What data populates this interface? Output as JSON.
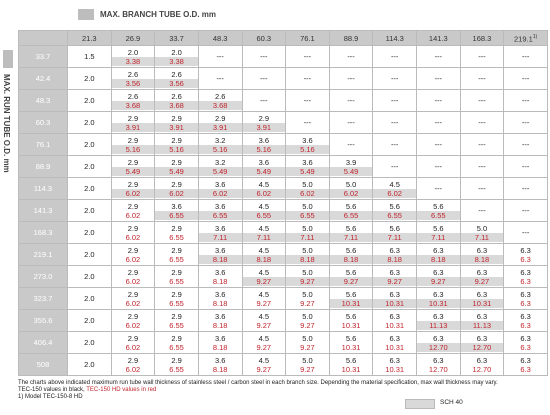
{
  "header": {
    "branch_label": "MAX. BRANCH TUBE O.D. mm",
    "run_label": "MAX. RUN TUBE O.D. mm"
  },
  "table": {
    "columns": [
      "21.3",
      "26.9",
      "33.7",
      "48.3",
      "60.3",
      "76.1",
      "88.9",
      "114.3",
      "141.3",
      "168.3",
      {
        "text": "219.1",
        "note": "1)"
      }
    ],
    "rows": [
      {
        "label": "33.7",
        "cells": [
          "1.5",
          {
            "a": "2.0",
            "b": "3.38",
            "s": true
          },
          {
            "a": "2.0",
            "b": "3.38",
            "s": true
          },
          "---",
          "---",
          "---",
          "---",
          "---",
          "---",
          "---",
          "---"
        ]
      },
      {
        "label": "42.4",
        "cells": [
          "2.0",
          {
            "a": "2.6",
            "b": "3.56",
            "s": true
          },
          {
            "a": "2.6",
            "b": "3.56",
            "s": true
          },
          "---",
          "---",
          "---",
          "---",
          "---",
          "---",
          "---",
          "---"
        ]
      },
      {
        "label": "48.3",
        "cells": [
          "2.0",
          {
            "a": "2.6",
            "b": "3.68",
            "s": true
          },
          {
            "a": "2.6",
            "b": "3.68",
            "s": true
          },
          {
            "a": "2.6",
            "b": "3.68",
            "s": true
          },
          "---",
          "---",
          "---",
          "---",
          "---",
          "---",
          "---"
        ]
      },
      {
        "label": "60.3",
        "cells": [
          "2.0",
          {
            "a": "2.9",
            "b": "3.91",
            "s": true
          },
          {
            "a": "2.9",
            "b": "3.91",
            "s": true
          },
          {
            "a": "2.9",
            "b": "3.91",
            "s": true
          },
          {
            "a": "2.9",
            "b": "3.91",
            "s": true
          },
          "---",
          "---",
          "---",
          "---",
          "---",
          "---"
        ]
      },
      {
        "label": "76.1",
        "cells": [
          "2.0",
          {
            "a": "2.9",
            "b": "5.16",
            "s": true
          },
          {
            "a": "2.9",
            "b": "5.16",
            "s": true
          },
          {
            "a": "3.2",
            "b": "5.16",
            "s": true
          },
          {
            "a": "3.6",
            "b": "5.16",
            "s": true
          },
          {
            "a": "3.6",
            "b": "5.16",
            "s": true
          },
          "---",
          "---",
          "---",
          "---",
          "---"
        ]
      },
      {
        "label": "88.9",
        "cells": [
          "2.0",
          {
            "a": "2.9",
            "b": "5.49",
            "s": true
          },
          {
            "a": "2.9",
            "b": "5.49",
            "s": true
          },
          {
            "a": "3.2",
            "b": "5.49",
            "s": true
          },
          {
            "a": "3.6",
            "b": "5.49",
            "s": true
          },
          {
            "a": "3.6",
            "b": "5.49",
            "s": true
          },
          {
            "a": "3.9",
            "b": "5.49",
            "s": true
          },
          "---",
          "---",
          "---",
          "---"
        ]
      },
      {
        "label": "114.3",
        "cells": [
          "2.0",
          {
            "a": "2.9",
            "b": "6.02",
            "s": true
          },
          {
            "a": "2.9",
            "b": "6.02",
            "s": true
          },
          {
            "a": "3.6",
            "b": "6.02",
            "s": true
          },
          {
            "a": "4.5",
            "b": "6.02",
            "s": true
          },
          {
            "a": "5.0",
            "b": "6.02",
            "s": true
          },
          {
            "a": "5.0",
            "b": "6.02",
            "s": true
          },
          {
            "a": "4.5",
            "b": "6.02",
            "s": true
          },
          "---",
          "---",
          "---"
        ]
      },
      {
        "label": "141.3",
        "cells": [
          "2.0",
          {
            "a": "2.9",
            "b": "6.02",
            "s": false
          },
          {
            "a": "3.6",
            "b": "6.55",
            "s": true
          },
          {
            "a": "3.6",
            "b": "6.55",
            "s": true
          },
          {
            "a": "4.5",
            "b": "6.55",
            "s": true
          },
          {
            "a": "5.0",
            "b": "6.55",
            "s": true
          },
          {
            "a": "5.6",
            "b": "6.55",
            "s": true
          },
          {
            "a": "5.6",
            "b": "6.55",
            "s": true
          },
          {
            "a": "5.6",
            "b": "6.55",
            "s": true
          },
          "---",
          "---"
        ]
      },
      {
        "label": "168.3",
        "cells": [
          "2.0",
          {
            "a": "2.9",
            "b": "6.02",
            "s": false
          },
          {
            "a": "2.9",
            "b": "6.55",
            "s": false
          },
          {
            "a": "3.6",
            "b": "7.11",
            "s": true
          },
          {
            "a": "4.5",
            "b": "7.11",
            "s": true
          },
          {
            "a": "5.0",
            "b": "7.11",
            "s": true
          },
          {
            "a": "5.6",
            "b": "7.11",
            "s": true
          },
          {
            "a": "5.6",
            "b": "7.11",
            "s": true
          },
          {
            "a": "5.6",
            "b": "7.11",
            "s": true
          },
          {
            "a": "5.0",
            "b": "7.11",
            "s": true
          },
          "---"
        ]
      },
      {
        "label": "219.1",
        "cells": [
          "2.0",
          {
            "a": "2.9",
            "b": "6.02",
            "s": false
          },
          {
            "a": "2.9",
            "b": "6.55",
            "s": false
          },
          {
            "a": "3.6",
            "b": "8.18",
            "s": true
          },
          {
            "a": "4.5",
            "b": "8.18",
            "s": true
          },
          {
            "a": "5.0",
            "b": "8.18",
            "s": true
          },
          {
            "a": "5.6",
            "b": "8.18",
            "s": true
          },
          {
            "a": "6.3",
            "b": "8.18",
            "s": true
          },
          {
            "a": "6.3",
            "b": "8.18",
            "s": true
          },
          {
            "a": "6.3",
            "b": "8.18",
            "s": true
          },
          {
            "a": "6.3",
            "b": "6.3",
            "s": false
          }
        ]
      },
      {
        "label": "273.0",
        "cells": [
          "2.0",
          {
            "a": "2.9",
            "b": "6.02",
            "s": false
          },
          {
            "a": "2.9",
            "b": "6.55",
            "s": false
          },
          {
            "a": "3.6",
            "b": "8.18",
            "s": false
          },
          {
            "a": "4.5",
            "b": "9.27",
            "s": true
          },
          {
            "a": "5.0",
            "b": "9.27",
            "s": true
          },
          {
            "a": "5.6",
            "b": "9.27",
            "s": true
          },
          {
            "a": "6.3",
            "b": "9.27",
            "s": true
          },
          {
            "a": "6.3",
            "b": "9.27",
            "s": true
          },
          {
            "a": "6.3",
            "b": "9.27",
            "s": true
          },
          {
            "a": "6.3",
            "b": "6.3",
            "s": false
          }
        ]
      },
      {
        "label": "323.7",
        "cells": [
          "2.0",
          {
            "a": "2.9",
            "b": "6.02",
            "s": false
          },
          {
            "a": "2.9",
            "b": "6.55",
            "s": false
          },
          {
            "a": "3.6",
            "b": "8.18",
            "s": false
          },
          {
            "a": "4.5",
            "b": "9.27",
            "s": false
          },
          {
            "a": "5.0",
            "b": "9.27",
            "s": false
          },
          {
            "a": "5.6",
            "b": "10.31",
            "s": true
          },
          {
            "a": "6.3",
            "b": "10.31",
            "s": true
          },
          {
            "a": "6.3",
            "b": "10.31",
            "s": true
          },
          {
            "a": "6.3",
            "b": "10.31",
            "s": true
          },
          {
            "a": "6.3",
            "b": "6.3",
            "s": false
          }
        ]
      },
      {
        "label": "355.6",
        "cells": [
          "2.0",
          {
            "a": "2.9",
            "b": "6.02",
            "s": false
          },
          {
            "a": "2.9",
            "b": "6.55",
            "s": false
          },
          {
            "a": "3.6",
            "b": "8.18",
            "s": false
          },
          {
            "a": "4.5",
            "b": "9.27",
            "s": false
          },
          {
            "a": "5.0",
            "b": "9.27",
            "s": false
          },
          {
            "a": "5.6",
            "b": "10.31",
            "s": false
          },
          {
            "a": "6.3",
            "b": "10.31",
            "s": false
          },
          {
            "a": "6.3",
            "b": "11.13",
            "s": true
          },
          {
            "a": "6.3",
            "b": "11.13",
            "s": true
          },
          {
            "a": "6.3",
            "b": "6.3",
            "s": false
          }
        ]
      },
      {
        "label": "406.4",
        "cells": [
          "2.0",
          {
            "a": "2.9",
            "b": "6.02",
            "s": false
          },
          {
            "a": "2.9",
            "b": "6.55",
            "s": false
          },
          {
            "a": "3.6",
            "b": "8.18",
            "s": false
          },
          {
            "a": "4.5",
            "b": "9.27",
            "s": false
          },
          {
            "a": "5.0",
            "b": "9.27",
            "s": false
          },
          {
            "a": "5.6",
            "b": "10.31",
            "s": false
          },
          {
            "a": "6.3",
            "b": "10.31",
            "s": false
          },
          {
            "a": "6.3",
            "b": "12.70",
            "s": true
          },
          {
            "a": "6.3",
            "b": "12.70",
            "s": true
          },
          {
            "a": "6.3",
            "b": "6.3",
            "s": false
          }
        ]
      },
      {
        "label": "508",
        "cells": [
          "2.0",
          {
            "a": "2.9",
            "b": "6.02",
            "s": false
          },
          {
            "a": "2.9",
            "b": "6.55",
            "s": false
          },
          {
            "a": "3.6",
            "b": "8.18",
            "s": false
          },
          {
            "a": "4.5",
            "b": "9.27",
            "s": false
          },
          {
            "a": "5.0",
            "b": "9.27",
            "s": false
          },
          {
            "a": "5.6",
            "b": "10.31",
            "s": false
          },
          {
            "a": "6.3",
            "b": "10.31",
            "s": false
          },
          {
            "a": "6.3",
            "b": "12.70",
            "s": false
          },
          {
            "a": "6.3",
            "b": "12.70",
            "s": false
          },
          {
            "a": "6.3",
            "b": "6.3",
            "s": false
          }
        ]
      }
    ]
  },
  "footer": {
    "note": "The charts above indicated maximum run tube wall thickness of stainless steel / carbon steel in each branch size. Depending the material specification, max wall thickness may vary.",
    "black_note": "TEC-150 values in black,",
    "red_note": "TEC-150 HD values in red",
    "model_note": "1) Model TEC-150-8 HD",
    "legend": "SCH 40"
  }
}
